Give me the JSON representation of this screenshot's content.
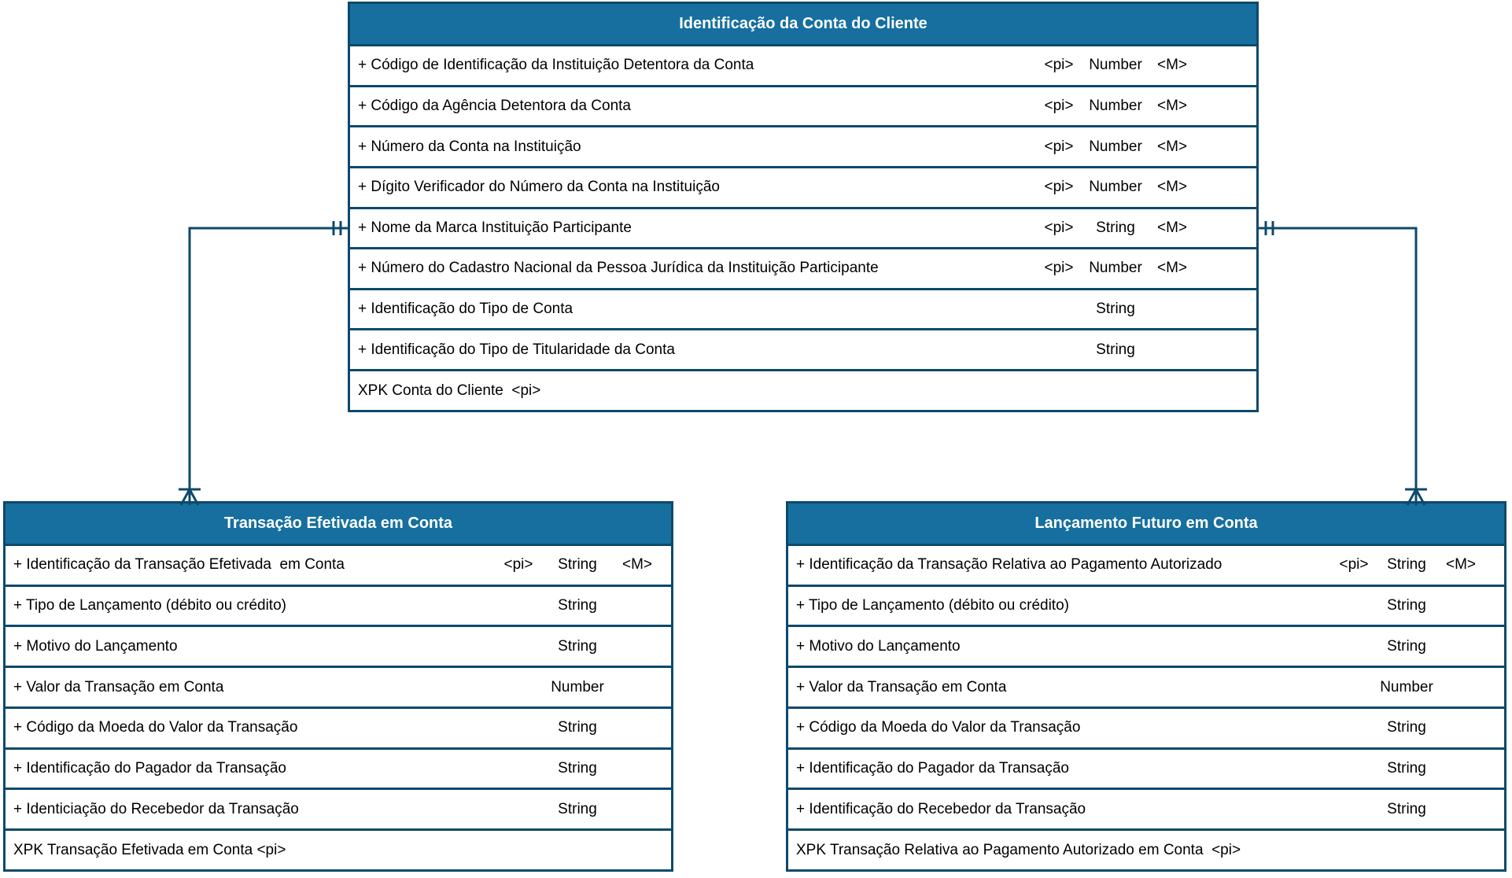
{
  "colors": {
    "entity_header_fill": "#166f9e",
    "entity_header_text": "#ffffff",
    "line_and_border": "#0d496b",
    "attribute_text": "#000000",
    "background": "#ffffff"
  },
  "entities": {
    "conta_cliente": {
      "title": "Identificação da Conta do Cliente",
      "rows": [
        {
          "name": "+ Código de Identificação da Instituição Detentora da Conta",
          "pi": "<pi>",
          "type": "Number",
          "m": "<M>"
        },
        {
          "name": "+ Código da Agência Detentora da Conta",
          "pi": "<pi>",
          "type": "Number",
          "m": "<M>"
        },
        {
          "name": "+ Número da Conta na Instituição",
          "pi": "<pi>",
          "type": "Number",
          "m": "<M>"
        },
        {
          "name": "+ Dígito Verificador do Número da Conta na Instituição",
          "pi": "<pi>",
          "type": "Number",
          "m": "<M>"
        },
        {
          "name": "+ Nome da Marca Instituição Participante",
          "pi": "<pi>",
          "type": "String",
          "m": "<M>"
        },
        {
          "name": "+ Número do Cadastro Nacional da Pessoa Jurídica da Instituição Participante",
          "pi": "<pi>",
          "type": "Number",
          "m": "<M>"
        },
        {
          "name": "+ Identificação do Tipo de Conta",
          "pi": "",
          "type": "String",
          "m": ""
        },
        {
          "name": "+ Identificação do Tipo de Titularidade da Conta",
          "pi": "",
          "type": "String",
          "m": ""
        }
      ],
      "key": "XPK Conta do Cliente  <pi>"
    },
    "transacao_efetivada": {
      "title": "Transação Efetivada em Conta",
      "rows": [
        {
          "name": "+ Identificação da Transação Efetivada  em Conta",
          "pi": "<pi>",
          "type": "String",
          "m": "<M>"
        },
        {
          "name": "+ Tipo de Lançamento (débito ou crédito)",
          "pi": "",
          "type": "String",
          "m": ""
        },
        {
          "name": "+ Motivo do Lançamento",
          "pi": "",
          "type": "String",
          "m": ""
        },
        {
          "name": "+ Valor da Transação em Conta",
          "pi": "",
          "type": "Number",
          "m": ""
        },
        {
          "name": "+ Código da Moeda do Valor da Transação",
          "pi": "",
          "type": "String",
          "m": ""
        },
        {
          "name": "+ Identificação do Pagador da Transação",
          "pi": "",
          "type": "String",
          "m": ""
        },
        {
          "name": "+ Identiciação do Recebedor da Transação",
          "pi": "",
          "type": "String",
          "m": ""
        }
      ],
      "key": "XPK Transação Efetivada em Conta <pi>"
    },
    "lancamento_futuro": {
      "title": "Lançamento Futuro em Conta",
      "rows": [
        {
          "name": "+ Identificação da Transação Relativa ao Pagamento Autorizado",
          "pi": "<pi>",
          "type": "String",
          "m": "<M>"
        },
        {
          "name": "+ Tipo de Lançamento (débito ou crédito)",
          "pi": "",
          "type": "String",
          "m": ""
        },
        {
          "name": "+ Motivo do Lançamento",
          "pi": "",
          "type": "String",
          "m": ""
        },
        {
          "name": "+ Valor da Transação em Conta",
          "pi": "",
          "type": "Number",
          "m": ""
        },
        {
          "name": "+ Código da Moeda do Valor da Transação",
          "pi": "",
          "type": "String",
          "m": ""
        },
        {
          "name": "+ Identificação do Pagador da Transação",
          "pi": "",
          "type": "String",
          "m": ""
        },
        {
          "name": "+ Identificação do Recebedor da Transação",
          "pi": "",
          "type": "String",
          "m": ""
        }
      ],
      "key": "XPK Transação Relativa ao Pagamento Autorizado em Conta  <pi>"
    }
  },
  "relationships": [
    {
      "from": "Identificação da Conta do Cliente",
      "to": "Transação Efetivada em Conta",
      "from_cardinality": "one-and-only-one",
      "to_cardinality": "one-or-many"
    },
    {
      "from": "Identificação da Conta do Cliente",
      "to": "Lançamento Futuro em Conta",
      "from_cardinality": "one-and-only-one",
      "to_cardinality": "one-or-many"
    }
  ]
}
